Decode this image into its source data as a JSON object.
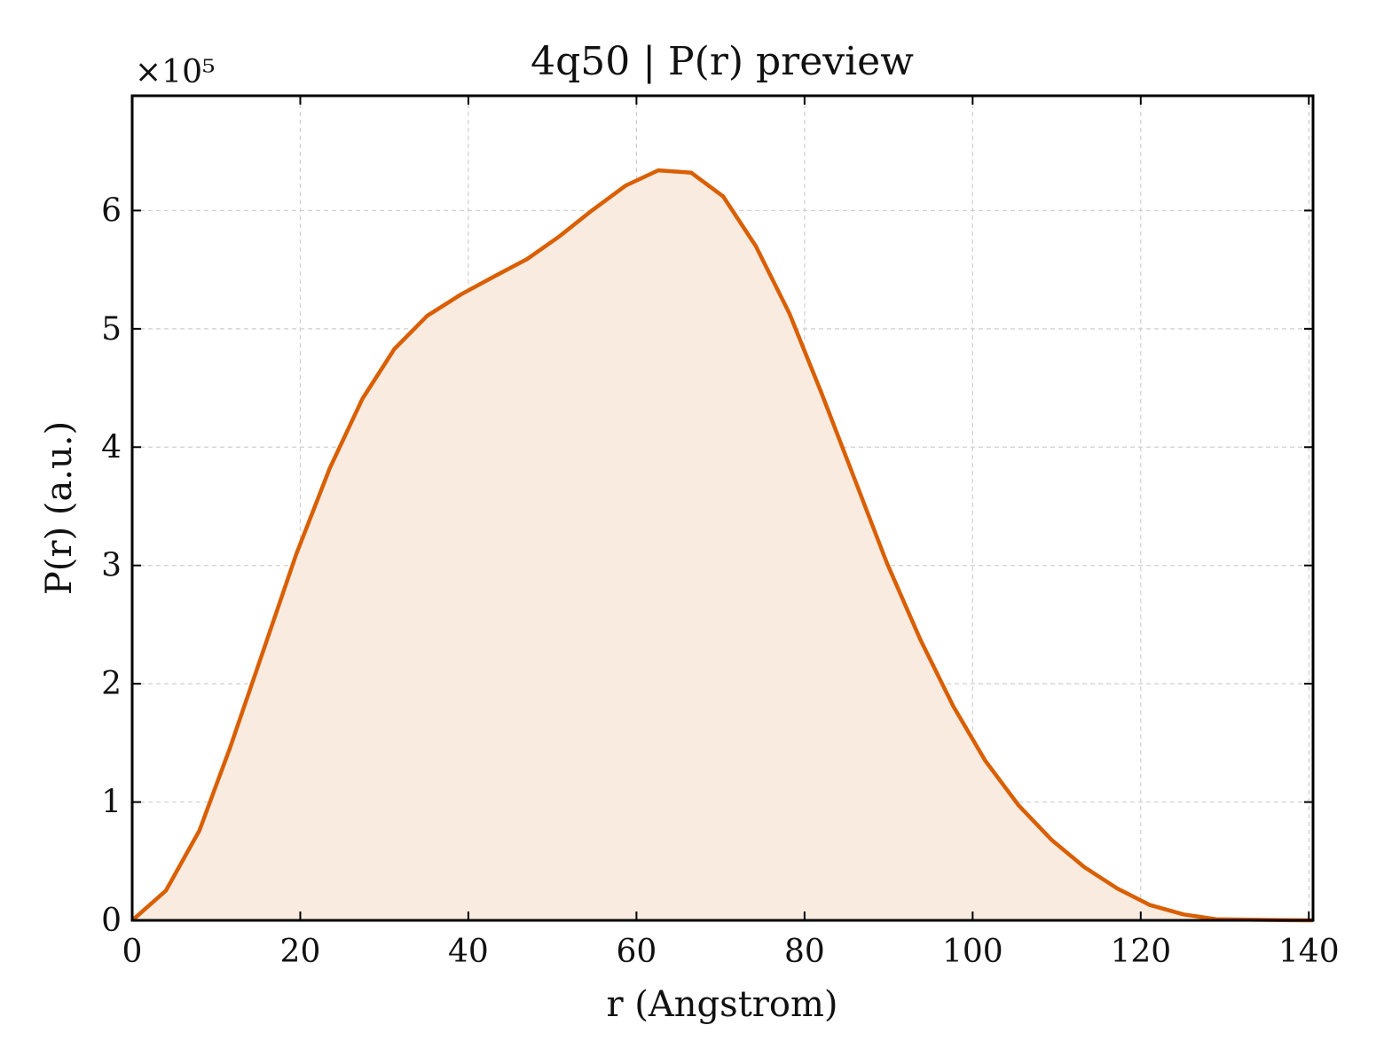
{
  "chart_data": {
    "type": "area",
    "title": "4q50 | P(r) preview",
    "xlabel": "r (Angstrom)",
    "ylabel": "P(r) (a.u.)",
    "y_scale_label": "×10⁵",
    "y_scale_factor": 100000,
    "xlim": [
      0,
      140.5
    ],
    "ylim": [
      0,
      697000
    ],
    "xticks": [
      0,
      20,
      40,
      60,
      80,
      100,
      120,
      140
    ],
    "yticks": [
      0,
      100000,
      200000,
      300000,
      400000,
      500000,
      600000
    ],
    "ytick_labels": [
      "0",
      "1",
      "2",
      "3",
      "4",
      "5",
      "6"
    ],
    "grid": true,
    "line_color": "#d95f02",
    "fill_color": "#f9ebe0",
    "series": [
      {
        "x": [
          0,
          4,
          8,
          11.6,
          15.6,
          19.5,
          23.5,
          27.4,
          31.2,
          35.1,
          39.1,
          43.0,
          47.0,
          50.8,
          54.7,
          58.7,
          62.6,
          66.5,
          70.3,
          74.2,
          78.2,
          82.0,
          85.9,
          89.8,
          93.8,
          97.7,
          101.5,
          105.5,
          109.4,
          113.3,
          117.2,
          121.1,
          125.1,
          129.0,
          132.9,
          136.8,
          140.5
        ],
        "y": [
          0,
          25000,
          76000,
          145000,
          228000,
          309000,
          382000,
          441000,
          483000,
          511000,
          529000,
          544000,
          559000,
          578000,
          600000,
          621000,
          634000,
          632000,
          612000,
          570000,
          513000,
          446000,
          374000,
          302000,
          237000,
          181000,
          135000,
          97000,
          68000,
          45000,
          27000,
          13000,
          5000,
          1000,
          500,
          200,
          0
        ]
      }
    ]
  }
}
